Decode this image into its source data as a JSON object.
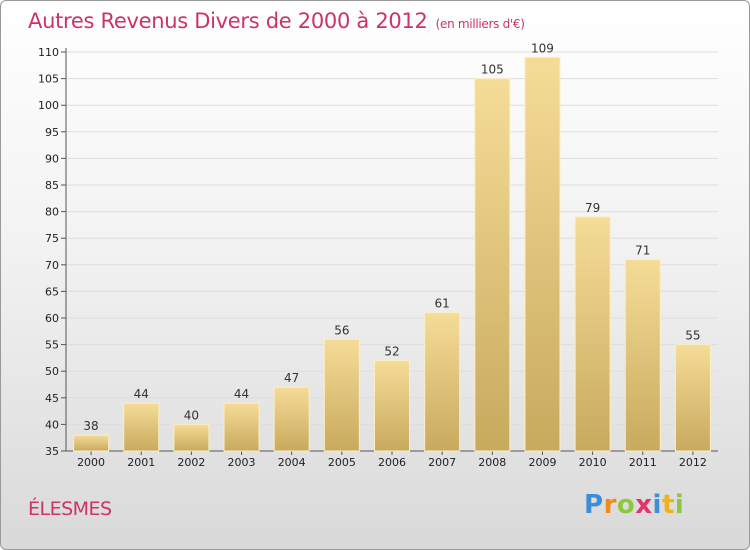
{
  "title": "Autres Revenus Divers de 2000 à 2012",
  "title_unit": "(en milliers d'€)",
  "commune": "ÉLESMES",
  "logo": {
    "text": "Proxiti",
    "letters": [
      {
        "char": "P",
        "color": "#3a8fd6"
      },
      {
        "char": "r",
        "color": "#f08a1c"
      },
      {
        "char": "o",
        "color": "#8dc63f"
      },
      {
        "char": "x",
        "color": "#e2336a"
      },
      {
        "char": "i",
        "color": "#3a8fd6"
      },
      {
        "char": "t",
        "color": "#f0b21c"
      },
      {
        "char": "i",
        "color": "#8dc63f"
      }
    ]
  },
  "colors": {
    "title": "#cc3366",
    "bar_light": "#f5dc97",
    "bar_dark": "#c8aa5e",
    "grid": "#dddddd"
  },
  "chart_data": {
    "type": "bar",
    "title": "Autres Revenus Divers de 2000 à 2012",
    "unit": "(en milliers d'€)",
    "categories": [
      "2000",
      "2001",
      "2002",
      "2003",
      "2004",
      "2005",
      "2006",
      "2007",
      "2008",
      "2009",
      "2010",
      "2011",
      "2012"
    ],
    "values": [
      38,
      44,
      40,
      44,
      47,
      56,
      52,
      61,
      105,
      109,
      79,
      71,
      55
    ],
    "ylim": [
      35,
      110
    ],
    "yticks": [
      35,
      40,
      45,
      50,
      55,
      60,
      65,
      70,
      75,
      80,
      85,
      90,
      95,
      100,
      105,
      110
    ],
    "grid": true,
    "legend": "none"
  }
}
